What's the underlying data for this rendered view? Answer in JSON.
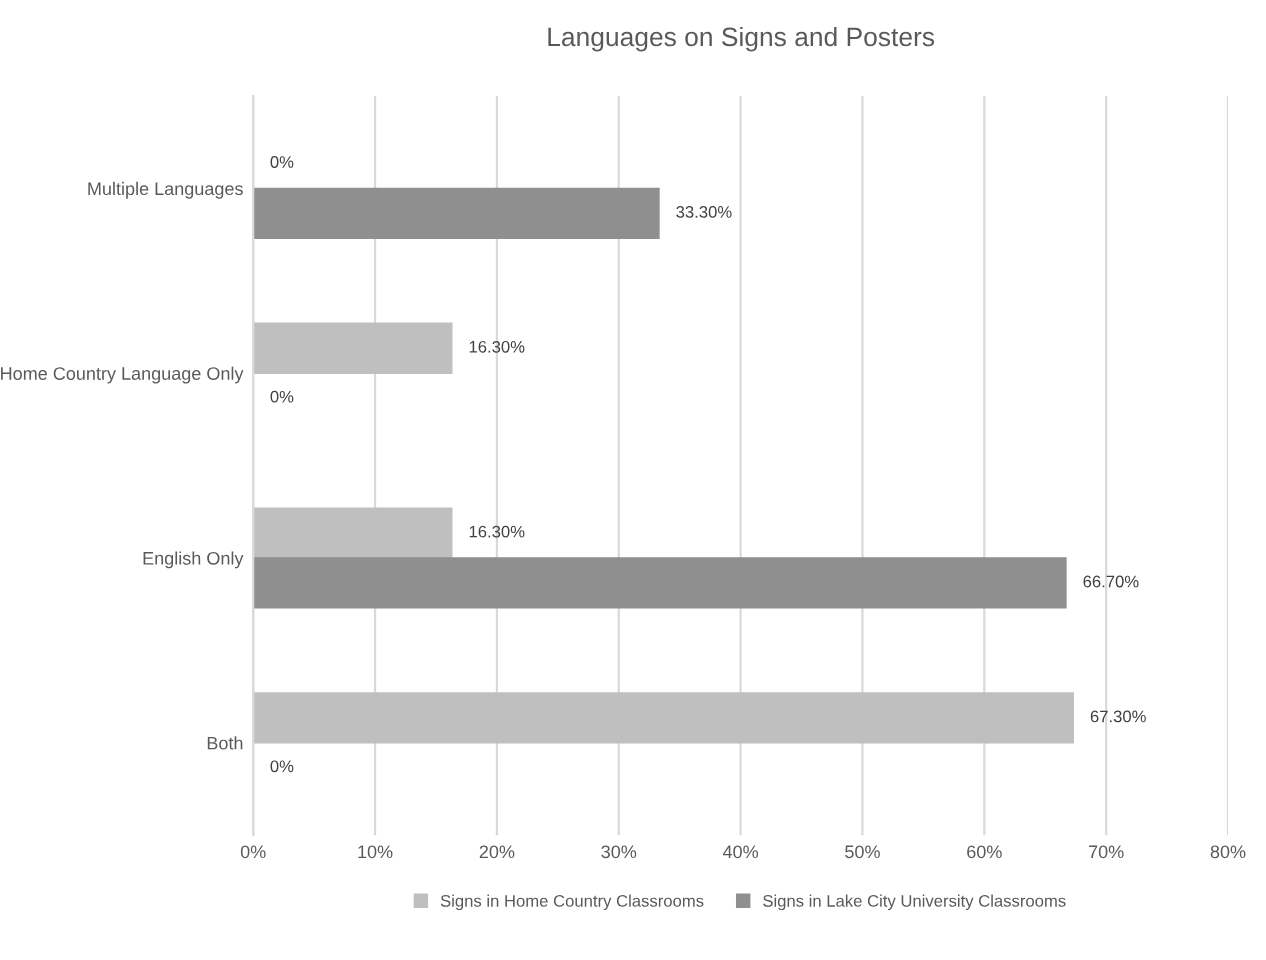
{
  "chart_data": {
    "type": "bar",
    "orientation": "horizontal",
    "title": "Languages on Signs and Posters",
    "categories": [
      "Multiple Languages",
      "Home Country Language Only",
      "English Only",
      "Both"
    ],
    "series": [
      {
        "name": "Signs in Home Country Classrooms",
        "color": "#bfbfbf",
        "values": [
          0,
          16.3,
          16.3,
          67.3
        ],
        "value_labels": [
          "0%",
          "16.30%",
          "16.30%",
          "67.30%"
        ]
      },
      {
        "name": "Signs in Lake City University Classrooms",
        "color": "#8f8f8f",
        "values": [
          33.3,
          0,
          66.7,
          0
        ],
        "value_labels": [
          "33.30%",
          "0%",
          "66.70%",
          "0%"
        ]
      }
    ],
    "xlim": [
      0,
      80
    ],
    "xticks": [
      {
        "value": 0,
        "label": "0%"
      },
      {
        "value": 10,
        "label": "10%"
      },
      {
        "value": 20,
        "label": "20%"
      },
      {
        "value": 30,
        "label": "30%"
      },
      {
        "value": 40,
        "label": "40%"
      },
      {
        "value": 50,
        "label": "50%"
      },
      {
        "value": 60,
        "label": "60%"
      },
      {
        "value": 70,
        "label": "70%"
      },
      {
        "value": 80,
        "label": "80%"
      }
    ],
    "grid": "x",
    "legend": "bottom"
  }
}
